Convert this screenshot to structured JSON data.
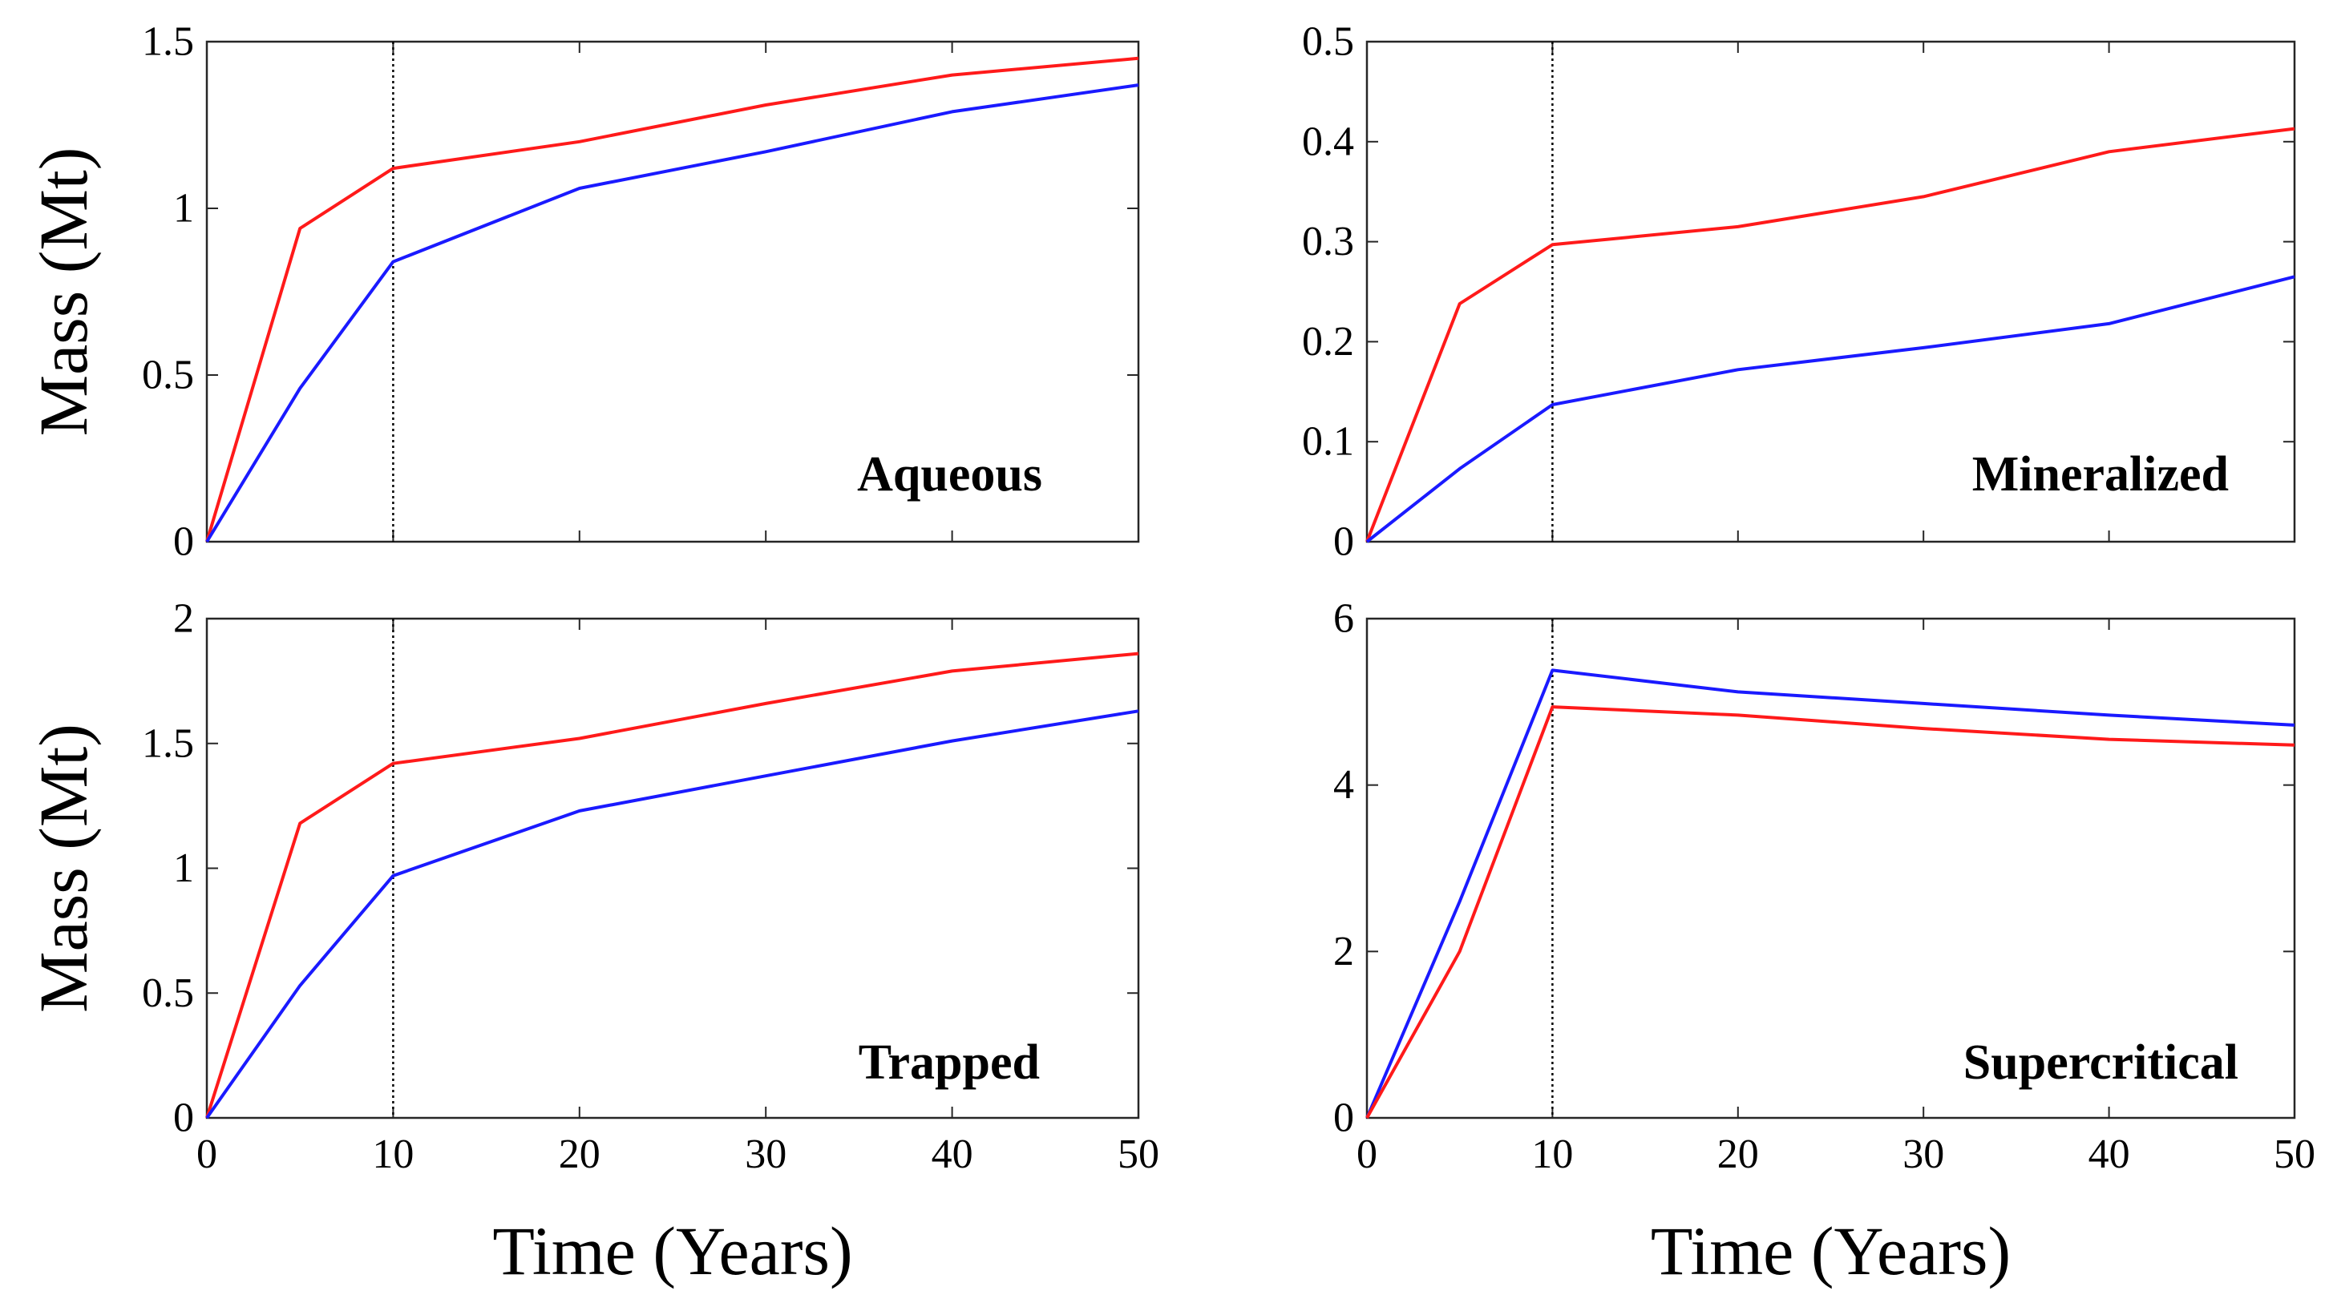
{
  "figure": {
    "colors": {
      "series_red": "#ff1a1a",
      "series_blue": "#1a1aff",
      "axes": "#262626"
    }
  },
  "chart_data": [
    {
      "type": "line",
      "annotation": "Aqueous",
      "ylabel": "Mass (Mt)",
      "xlabel": "",
      "xlim": [
        0,
        50
      ],
      "ylim": [
        0,
        1.5
      ],
      "xticks": [
        0,
        10,
        20,
        30,
        40,
        50
      ],
      "xtick_labels": [],
      "yticks": [
        0,
        0.5,
        1,
        1.5
      ],
      "ytick_labels": [
        "0",
        "0.5",
        "1",
        "1.5"
      ],
      "reference_x": 10,
      "grid": false,
      "series": [
        {
          "color": "#ff1a1a",
          "x": [
            0,
            5,
            10,
            20,
            30,
            40,
            50
          ],
          "y": [
            0,
            0.94,
            1.12,
            1.2,
            1.31,
            1.4,
            1.45
          ]
        },
        {
          "color": "#1a1aff",
          "x": [
            0,
            5,
            10,
            20,
            30,
            40,
            50
          ],
          "y": [
            0,
            0.46,
            0.84,
            1.06,
            1.17,
            1.29,
            1.37
          ]
        }
      ]
    },
    {
      "type": "line",
      "annotation": "Mineralized",
      "ylabel": "",
      "xlabel": "",
      "xlim": [
        0,
        50
      ],
      "ylim": [
        0,
        0.5
      ],
      "xticks": [
        0,
        10,
        20,
        30,
        40,
        50
      ],
      "xtick_labels": [],
      "yticks": [
        0,
        0.1,
        0.2,
        0.3,
        0.4,
        0.5
      ],
      "ytick_labels": [
        "0",
        "0.1",
        "0.2",
        "0.3",
        "0.4",
        "0.5"
      ],
      "reference_x": 10,
      "grid": false,
      "series": [
        {
          "color": "#ff1a1a",
          "x": [
            0,
            5,
            10,
            20,
            30,
            40,
            50
          ],
          "y": [
            0,
            0.238,
            0.297,
            0.315,
            0.345,
            0.39,
            0.413
          ]
        },
        {
          "color": "#1a1aff",
          "x": [
            0,
            5,
            10,
            20,
            30,
            40,
            50
          ],
          "y": [
            0,
            0.073,
            0.137,
            0.172,
            0.194,
            0.218,
            0.265
          ]
        }
      ]
    },
    {
      "type": "line",
      "annotation": "Trapped",
      "ylabel": "Mass (Mt)",
      "xlabel": "Time (Years)",
      "xlim": [
        0,
        50
      ],
      "ylim": [
        0,
        2
      ],
      "xticks": [
        0,
        10,
        20,
        30,
        40,
        50
      ],
      "xtick_labels": [
        "0",
        "10",
        "20",
        "30",
        "40",
        "50"
      ],
      "yticks": [
        0,
        0.5,
        1,
        1.5,
        2
      ],
      "ytick_labels": [
        "0",
        "0.5",
        "1",
        "1.5",
        "2"
      ],
      "reference_x": 10,
      "grid": false,
      "series": [
        {
          "color": "#ff1a1a",
          "x": [
            0,
            5,
            10,
            20,
            30,
            40,
            50
          ],
          "y": [
            0,
            1.18,
            1.42,
            1.52,
            1.66,
            1.79,
            1.86
          ]
        },
        {
          "color": "#1a1aff",
          "x": [
            0,
            5,
            10,
            20,
            30,
            40,
            50
          ],
          "y": [
            0,
            0.53,
            0.97,
            1.23,
            1.37,
            1.51,
            1.63
          ]
        }
      ]
    },
    {
      "type": "line",
      "annotation": "Supercritical",
      "ylabel": "",
      "xlabel": "Time (Years)",
      "xlim": [
        0,
        50
      ],
      "ylim": [
        0,
        6
      ],
      "xticks": [
        0,
        10,
        20,
        30,
        40,
        50
      ],
      "xtick_labels": [
        "0",
        "10",
        "20",
        "30",
        "40",
        "50"
      ],
      "yticks": [
        0,
        2,
        4,
        6
      ],
      "ytick_labels": [
        "0",
        "2",
        "4",
        "6"
      ],
      "reference_x": 10,
      "grid": false,
      "series": [
        {
          "color": "#1a1aff",
          "x": [
            0,
            5,
            10,
            20,
            30,
            40,
            50
          ],
          "y": [
            0,
            2.6,
            5.38,
            5.12,
            4.98,
            4.84,
            4.72
          ]
        },
        {
          "color": "#ff1a1a",
          "x": [
            0,
            5,
            10,
            20,
            30,
            40,
            50
          ],
          "y": [
            0,
            2.0,
            4.94,
            4.84,
            4.68,
            4.55,
            4.48
          ]
        }
      ]
    }
  ]
}
